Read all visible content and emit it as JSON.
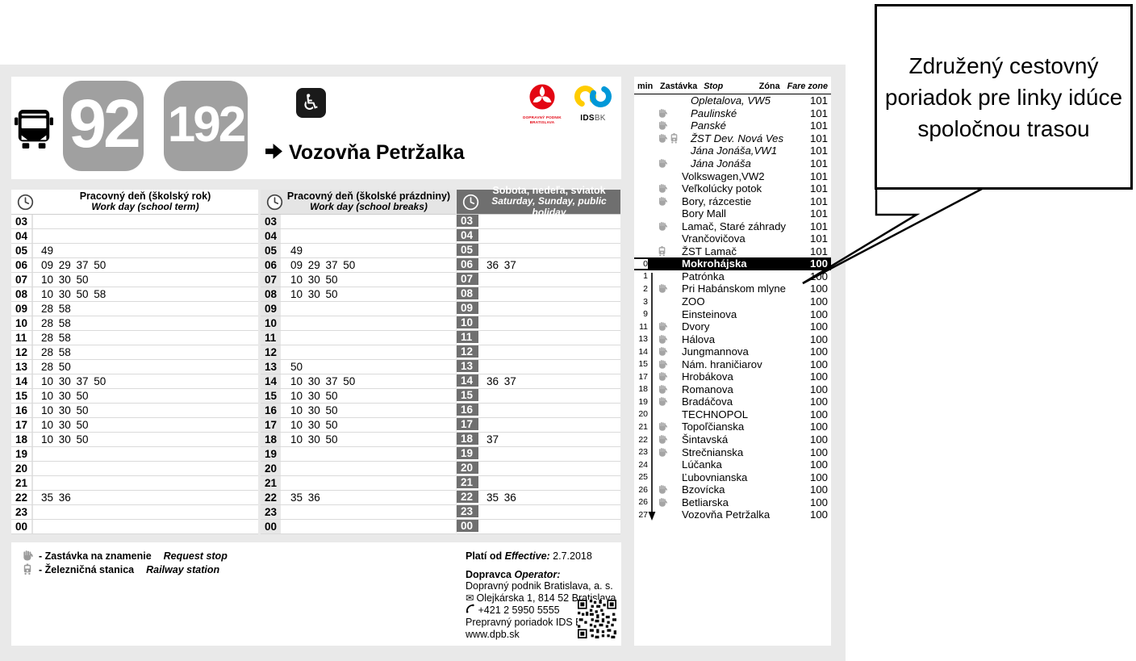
{
  "header": {
    "route_numbers": [
      "92",
      "192"
    ],
    "destination": "Vozovňa Petržalka",
    "logos": {
      "dpb_caption_line1": "DOPRAVNÝ PODNIK",
      "dpb_caption_line2": "BRATISLAVA",
      "idsbk_caption_bold": "IDS",
      "idsbk_caption_light": "BK"
    }
  },
  "icons": {
    "bus": "bus-icon",
    "wheelchair_glyph": "♿",
    "direction_arrow": "arrow-right-icon",
    "clock": "clock-icon",
    "request_stop": "hand-icon",
    "railway_station": "train-icon",
    "mail_glyph": "✉",
    "phone": "phone-icon",
    "qr": "qr-code"
  },
  "hours": [
    "03",
    "04",
    "05",
    "06",
    "07",
    "08",
    "09",
    "10",
    "11",
    "12",
    "13",
    "14",
    "15",
    "16",
    "17",
    "18",
    "19",
    "20",
    "21",
    "22",
    "23",
    "00"
  ],
  "timetables": [
    {
      "title_sk": "Pracovný deň (školský rok)",
      "title_en": "Work day (school term)",
      "minutes": [
        "",
        "",
        "49",
        "09 29 37 50",
        "10 30 50",
        "10 30 50 58",
        "28 58",
        "28 58",
        "28 58",
        "28 58",
        "28 50",
        "10 30 37 50",
        "10 30 50",
        "10 30 50",
        "10 30 50",
        "10 30 50",
        "",
        "",
        "",
        "35 36",
        "",
        ""
      ]
    },
    {
      "title_sk": "Pracovný deň (školské prázdniny)",
      "title_en": "Work day (school breaks)",
      "minutes": [
        "",
        "",
        "49",
        "09 29 37 50",
        "10 30 50",
        "10 30 50",
        "",
        "",
        "",
        "",
        "50",
        "10 30 37 50",
        "10 30 50",
        "10 30 50",
        "10 30 50",
        "10 30 50",
        "",
        "",
        "",
        "35 36",
        "",
        ""
      ]
    },
    {
      "title_sk": "Sobota, nedeľa, sviatok",
      "title_en": "Saturday, Sunday, public holiday",
      "minutes": [
        "",
        "",
        "",
        "36 37",
        "",
        "",
        "",
        "",
        "",
        "",
        "",
        "36 37",
        "",
        "",
        "",
        "37",
        "",
        "",
        "",
        "35 36",
        "",
        ""
      ]
    }
  ],
  "stop_list": {
    "headers": {
      "min": "min",
      "stop_sk": "Zastávka",
      "stop_en": "Stop",
      "zone_sk": "Zóna",
      "zone_en": "Fare zone"
    },
    "stops": [
      {
        "min": "",
        "icons": [],
        "name": "Opletalova, VW5",
        "zone": "101",
        "italic": true
      },
      {
        "min": "",
        "icons": [
          "request"
        ],
        "name": "Paulinské",
        "zone": "101",
        "italic": true
      },
      {
        "min": "",
        "icons": [
          "request"
        ],
        "name": "Panské",
        "zone": "101",
        "italic": true
      },
      {
        "min": "",
        "icons": [
          "request",
          "rail"
        ],
        "name": "ŽST Dev. Nová Ves",
        "zone": "101",
        "italic": true
      },
      {
        "min": "",
        "icons": [],
        "name": "Jána Jonáša,VW1",
        "zone": "101",
        "italic": true
      },
      {
        "min": "",
        "icons": [
          "request"
        ],
        "name": "Jána Jonáša",
        "zone": "101",
        "italic": true
      },
      {
        "min": "",
        "icons": [],
        "name": "Volkswagen,VW2",
        "zone": "101"
      },
      {
        "min": "",
        "icons": [
          "request"
        ],
        "name": "Veľkolúcky potok",
        "zone": "101"
      },
      {
        "min": "",
        "icons": [
          "request"
        ],
        "name": "Bory, rázcestie",
        "zone": "101"
      },
      {
        "min": "",
        "icons": [],
        "name": "Bory Mall",
        "zone": "101"
      },
      {
        "min": "",
        "icons": [
          "request"
        ],
        "name": "Lamač, Staré záhrady",
        "zone": "101"
      },
      {
        "min": "",
        "icons": [],
        "name": "Vrančovičova",
        "zone": "101"
      },
      {
        "min": "",
        "icons": [
          "rail"
        ],
        "name": "ŽST Lamač",
        "zone": "101"
      },
      {
        "min": "0",
        "icons": [],
        "name": "Mokrohájska",
        "zone": "100",
        "highlight": true,
        "on_route": true
      },
      {
        "min": "1",
        "icons": [],
        "name": "Patrónka",
        "zone": "100",
        "on_route": true
      },
      {
        "min": "2",
        "icons": [
          "request"
        ],
        "name": "Pri Habánskom mlyne",
        "zone": "100",
        "on_route": true
      },
      {
        "min": "3",
        "icons": [],
        "name": "ZOO",
        "zone": "100",
        "on_route": true
      },
      {
        "min": "9",
        "icons": [],
        "name": "Einsteinova",
        "zone": "100",
        "on_route": true
      },
      {
        "min": "11",
        "icons": [
          "request"
        ],
        "name": "Dvory",
        "zone": "100",
        "on_route": true
      },
      {
        "min": "13",
        "icons": [
          "request"
        ],
        "name": "Hálova",
        "zone": "100",
        "on_route": true
      },
      {
        "min": "14",
        "icons": [
          "request"
        ],
        "name": "Jungmannova",
        "zone": "100",
        "on_route": true
      },
      {
        "min": "15",
        "icons": [
          "request"
        ],
        "name": "Nám. hraničiarov",
        "zone": "100",
        "on_route": true
      },
      {
        "min": "17",
        "icons": [
          "request"
        ],
        "name": "Hrobákova",
        "zone": "100",
        "on_route": true
      },
      {
        "min": "18",
        "icons": [
          "request"
        ],
        "name": "Romanova",
        "zone": "100",
        "on_route": true
      },
      {
        "min": "19",
        "icons": [
          "request"
        ],
        "name": "Bradáčova",
        "zone": "100",
        "on_route": true
      },
      {
        "min": "20",
        "icons": [],
        "name": "TECHNOPOL",
        "zone": "100",
        "on_route": true
      },
      {
        "min": "21",
        "icons": [
          "request"
        ],
        "name": "Topoľčianska",
        "zone": "100",
        "on_route": true
      },
      {
        "min": "22",
        "icons": [
          "request"
        ],
        "name": "Šintavská",
        "zone": "100",
        "on_route": true
      },
      {
        "min": "23",
        "icons": [
          "request"
        ],
        "name": "Strečnianska",
        "zone": "100",
        "on_route": true
      },
      {
        "min": "24",
        "icons": [],
        "name": "Lúčanka",
        "zone": "100",
        "on_route": true
      },
      {
        "min": "25",
        "icons": [],
        "name": "Ľubovnianska",
        "zone": "100",
        "on_route": true
      },
      {
        "min": "26",
        "icons": [
          "request"
        ],
        "name": "Bzovícka",
        "zone": "100",
        "on_route": true
      },
      {
        "min": "26",
        "icons": [
          "request"
        ],
        "name": "Betliarska",
        "zone": "100",
        "on_route": true
      },
      {
        "min": "27",
        "icons": [],
        "name": "Vozovňa Petržalka",
        "zone": "100",
        "on_route": true,
        "arrow_end": true
      }
    ]
  },
  "legend": {
    "request_stop_sk": "- Zastávka na znamenie",
    "request_stop_en": "Request stop",
    "railway_sk": "- Železničná stanica",
    "railway_en": "Railway station"
  },
  "info": {
    "valid_from_sk": "Platí od",
    "valid_from_en": "Effective:",
    "valid_from_date": "2.7.2018",
    "operator_sk": "Dopravca",
    "operator_en": "Operator:",
    "operator_name": "Dopravný podnik Bratislava, a. s.",
    "address": "Olejkárska 1, 814 52 Bratislava",
    "phone": "+421 2 5950 5555",
    "idsbk_line": "Prepravný poriadok IDS BK:",
    "website": "www.dpb.sk"
  },
  "callout": {
    "text": "Združený cestovný poriadok pre linky idúce spoločnou trasou"
  },
  "colors": {
    "badge_gray": "#a0a0a0",
    "dark_header_gray": "#6f6f6f",
    "page_background": "#e9e9e9",
    "highlight_row": "#000000",
    "dpb_red": "#e30613",
    "idsbk_blue": "#0098d8",
    "idsbk_yellow": "#ffcc00"
  }
}
